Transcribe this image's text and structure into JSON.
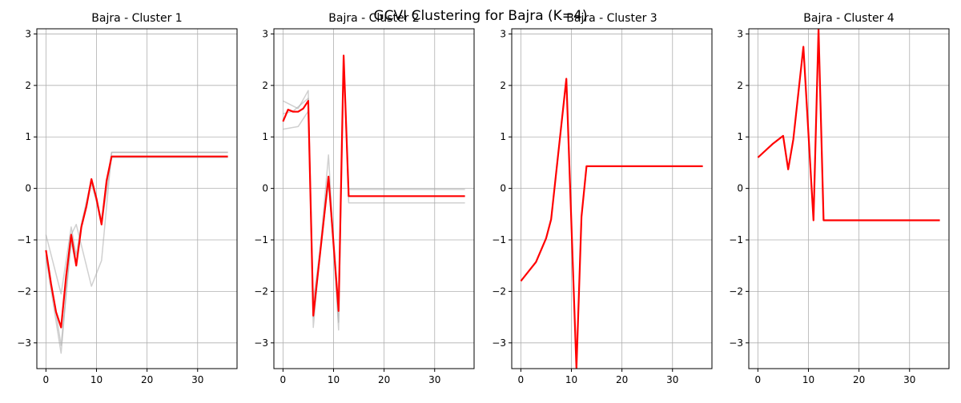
{
  "title": "GCVI Clustering for Bajra (K=4)",
  "colors": {
    "mean": "#ff0000",
    "member": "#a9a9a9",
    "grid": "#b0b0b0",
    "axis": "#000000"
  },
  "chart_data": [
    {
      "type": "line",
      "title": "Bajra - Cluster 1",
      "xlabel": "",
      "ylabel": "",
      "xlim": [
        -1.8,
        37.8
      ],
      "ylim": [
        -3.5,
        3.1
      ],
      "xticks": [
        0,
        10,
        20,
        30
      ],
      "yticks": [
        -3,
        -2,
        -1,
        0,
        1,
        2,
        3
      ],
      "grid": true,
      "series": [
        {
          "role": "member",
          "x": [
            0,
            3,
            5,
            6,
            7,
            9,
            11,
            12,
            13,
            36
          ],
          "y": [
            -0.9,
            -2.05,
            -0.75,
            -1.3,
            -0.7,
            0.1,
            -0.6,
            0.1,
            0.7,
            0.7
          ]
        },
        {
          "role": "member",
          "x": [
            0,
            3,
            5,
            6,
            9,
            11,
            13,
            36
          ],
          "y": [
            -1.35,
            -3.2,
            -0.9,
            -0.7,
            -1.9,
            -1.4,
            0.7,
            0.7
          ]
        },
        {
          "role": "member",
          "x": [
            0,
            3,
            5,
            6,
            7,
            9,
            11,
            13,
            36
          ],
          "y": [
            -1.2,
            -3.05,
            -1.05,
            -1.5,
            -0.7,
            0.18,
            -0.7,
            0.6,
            0.6
          ]
        },
        {
          "role": "mean",
          "x": [
            0,
            1,
            2,
            3,
            4,
            5,
            6,
            7,
            8,
            9,
            10,
            11,
            12,
            13,
            36
          ],
          "y": [
            -1.2,
            -1.85,
            -2.4,
            -2.7,
            -1.7,
            -0.9,
            -1.5,
            -0.75,
            -0.35,
            0.18,
            -0.2,
            -0.7,
            0.15,
            0.62,
            0.62
          ]
        }
      ]
    },
    {
      "type": "line",
      "title": "Bajra - Cluster 2",
      "xlabel": "",
      "ylabel": "",
      "xlim": [
        -1.8,
        37.8
      ],
      "ylim": [
        -3.5,
        3.1
      ],
      "xticks": [
        0,
        10,
        20,
        30
      ],
      "yticks": [
        -3,
        -2,
        -1,
        0,
        1,
        2,
        3
      ],
      "grid": true,
      "series": [
        {
          "role": "member",
          "x": [
            0,
            3,
            5,
            6,
            9,
            11,
            12,
            13,
            36
          ],
          "y": [
            1.7,
            1.55,
            1.9,
            -2.7,
            0.65,
            -2.75,
            2.55,
            -0.28,
            -0.28
          ]
        },
        {
          "role": "member",
          "x": [
            0,
            3,
            5,
            6,
            9,
            11,
            12,
            13,
            36
          ],
          "y": [
            1.15,
            1.2,
            1.5,
            -2.5,
            0.2,
            -2.6,
            2.55,
            -0.02,
            -0.02
          ]
        },
        {
          "role": "member",
          "x": [
            0,
            2,
            5,
            6,
            9,
            11,
            12,
            13,
            36
          ],
          "y": [
            1.45,
            1.5,
            1.75,
            -2.2,
            0.1,
            -2.3,
            2.55,
            -0.15,
            -0.15
          ]
        },
        {
          "role": "mean",
          "x": [
            0,
            1,
            2,
            3,
            4,
            5,
            6,
            9,
            11,
            12,
            13,
            36
          ],
          "y": [
            1.3,
            1.53,
            1.49,
            1.49,
            1.55,
            1.7,
            -2.47,
            0.23,
            -2.38,
            2.58,
            -0.15,
            -0.15
          ]
        }
      ]
    },
    {
      "type": "line",
      "title": "Bajra - Cluster 3",
      "xlabel": "",
      "ylabel": "",
      "xlim": [
        -1.8,
        37.8
      ],
      "ylim": [
        -3.5,
        3.1
      ],
      "xticks": [
        0,
        10,
        20,
        30
      ],
      "yticks": [
        -3,
        -2,
        -1,
        0,
        1,
        2,
        3
      ],
      "grid": true,
      "series": [
        {
          "role": "mean",
          "x": [
            0,
            3,
            5,
            6,
            9,
            11,
            12,
            13,
            36
          ],
          "y": [
            -1.8,
            -1.43,
            -0.97,
            -0.6,
            2.13,
            -3.5,
            -0.55,
            0.43,
            0.43
          ]
        }
      ]
    },
    {
      "type": "line",
      "title": "Bajra - Cluster 4",
      "xlabel": "",
      "ylabel": "",
      "xlim": [
        -1.8,
        37.8
      ],
      "ylim": [
        -3.5,
        3.1
      ],
      "xticks": [
        0,
        10,
        20,
        30
      ],
      "yticks": [
        -3,
        -2,
        -1,
        0,
        1,
        2,
        3
      ],
      "grid": true,
      "series": [
        {
          "role": "mean",
          "x": [
            0,
            3,
            5,
            6,
            7,
            9,
            11,
            12,
            13,
            36
          ],
          "y": [
            0.6,
            0.87,
            1.02,
            0.37,
            0.95,
            2.75,
            -0.62,
            3.1,
            -0.62,
            -0.62
          ]
        }
      ]
    }
  ]
}
